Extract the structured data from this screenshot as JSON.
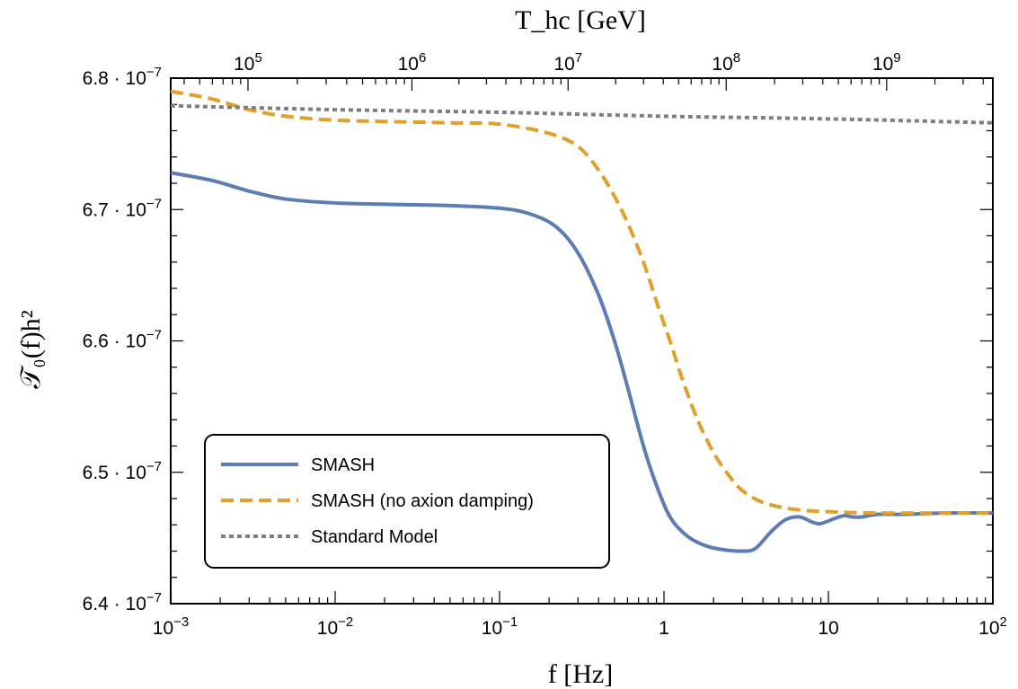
{
  "chart_data": {
    "type": "line",
    "title": "",
    "xlabel": "f [Hz]",
    "ylabel": "𝒯₀(f)h²",
    "top_xlabel": "T_hc [GeV]",
    "x_scale": "log",
    "xlim": [
      0.001,
      100
    ],
    "ylim": [
      6.4e-07,
      6.8e-07
    ],
    "x_ticks": [
      {
        "value": 0.001,
        "base": "10",
        "exp": "−3",
        "text": ""
      },
      {
        "value": 0.01,
        "base": "10",
        "exp": "−2",
        "text": ""
      },
      {
        "value": 0.1,
        "base": "10",
        "exp": "−1",
        "text": ""
      },
      {
        "value": 1,
        "base": "",
        "exp": "",
        "text": "1"
      },
      {
        "value": 10,
        "base": "",
        "exp": "",
        "text": "10"
      },
      {
        "value": 100,
        "base": "10",
        "exp": "2",
        "text": ""
      }
    ],
    "top_x_ticks": [
      {
        "f_value": 0.00295,
        "base": "10",
        "exp": "5"
      },
      {
        "f_value": 0.0293,
        "base": "10",
        "exp": "6"
      },
      {
        "f_value": 0.261,
        "base": "10",
        "exp": "7"
      },
      {
        "f_value": 2.39,
        "base": "10",
        "exp": "8"
      },
      {
        "f_value": 22.6,
        "base": "10",
        "exp": "9"
      }
    ],
    "y_ticks": [
      {
        "value": 6.4e-07,
        "mant": "6.4 · 10",
        "exp": "−7"
      },
      {
        "value": 6.5e-07,
        "mant": "6.5 · 10",
        "exp": "−7"
      },
      {
        "value": 6.6e-07,
        "mant": "6.6 · 10",
        "exp": "−7"
      },
      {
        "value": 6.7e-07,
        "mant": "6.7 · 10",
        "exp": "−7"
      },
      {
        "value": 6.8e-07,
        "mant": "6.8 · 10",
        "exp": "−7"
      }
    ],
    "grid": false,
    "legend_position": "bottom-left",
    "series": [
      {
        "name": "SMASH",
        "color": "#5b7db4",
        "dash": "solid",
        "points": [
          [
            0.001,
            6.728e-07
          ],
          [
            0.0018,
            6.722e-07
          ],
          [
            0.003,
            6.714e-07
          ],
          [
            0.005,
            6.708e-07
          ],
          [
            0.01,
            6.705e-07
          ],
          [
            0.02,
            6.704e-07
          ],
          [
            0.05,
            6.703e-07
          ],
          [
            0.1,
            6.701e-07
          ],
          [
            0.15,
            6.697e-07
          ],
          [
            0.22,
            6.687e-07
          ],
          [
            0.3,
            6.667e-07
          ],
          [
            0.4,
            6.635e-07
          ],
          [
            0.5,
            6.6e-07
          ],
          [
            0.6,
            6.565e-07
          ],
          [
            0.75,
            6.52e-07
          ],
          [
            0.9,
            6.49e-07
          ],
          [
            1.1,
            6.465e-07
          ],
          [
            1.4,
            6.451e-07
          ],
          [
            1.8,
            6.444e-07
          ],
          [
            2.3,
            6.441e-07
          ],
          [
            3.0,
            6.44e-07
          ],
          [
            3.6,
            6.442e-07
          ],
          [
            4.5,
            6.455e-07
          ],
          [
            5.5,
            6.464e-07
          ],
          [
            6.7,
            6.466e-07
          ],
          [
            8.0,
            6.462e-07
          ],
          [
            9.0,
            6.461e-07
          ],
          [
            11.0,
            6.465e-07
          ],
          [
            12.5,
            6.467e-07
          ],
          [
            14.0,
            6.466e-07
          ],
          [
            16.0,
            6.466e-07
          ],
          [
            20.0,
            6.468e-07
          ],
          [
            30.0,
            6.468e-07
          ],
          [
            50.0,
            6.469e-07
          ],
          [
            100.0,
            6.469e-07
          ]
        ]
      },
      {
        "name": "SMASH (no axion damping)",
        "color": "#e0a02c",
        "dash": "dashed",
        "points": [
          [
            0.001,
            6.79e-07
          ],
          [
            0.0018,
            6.784e-07
          ],
          [
            0.003,
            6.776e-07
          ],
          [
            0.005,
            6.771e-07
          ],
          [
            0.01,
            6.768e-07
          ],
          [
            0.02,
            6.767e-07
          ],
          [
            0.05,
            6.766e-07
          ],
          [
            0.1,
            6.765e-07
          ],
          [
            0.2,
            6.758e-07
          ],
          [
            0.3,
            6.748e-07
          ],
          [
            0.4,
            6.73e-07
          ],
          [
            0.5,
            6.71e-07
          ],
          [
            0.6,
            6.69e-07
          ],
          [
            0.75,
            6.66e-07
          ],
          [
            0.9,
            6.63e-07
          ],
          [
            1.1,
            6.598e-07
          ],
          [
            1.3,
            6.57e-07
          ],
          [
            1.6,
            6.54e-07
          ],
          [
            2.0,
            6.515e-07
          ],
          [
            2.5,
            6.497e-07
          ],
          [
            3.0,
            6.486e-07
          ],
          [
            4.0,
            6.477e-07
          ],
          [
            6.0,
            6.472e-07
          ],
          [
            10.0,
            6.47e-07
          ],
          [
            20.0,
            6.469e-07
          ],
          [
            50.0,
            6.469e-07
          ],
          [
            100.0,
            6.469e-07
          ]
        ]
      },
      {
        "name": "Standard Model",
        "color": "#7f7f7f",
        "dash": "dotted",
        "points": [
          [
            0.001,
            6.779e-07
          ],
          [
            0.01,
            6.776e-07
          ],
          [
            0.1,
            6.774e-07
          ],
          [
            1.0,
            6.771e-07
          ],
          [
            10.0,
            6.769e-07
          ],
          [
            100.0,
            6.766e-07
          ]
        ]
      }
    ]
  },
  "colors": {
    "axis": "#000000",
    "smash": "#5b7db4",
    "smash_no_damping": "#e0a02c",
    "standard_model": "#7f7f7f"
  }
}
